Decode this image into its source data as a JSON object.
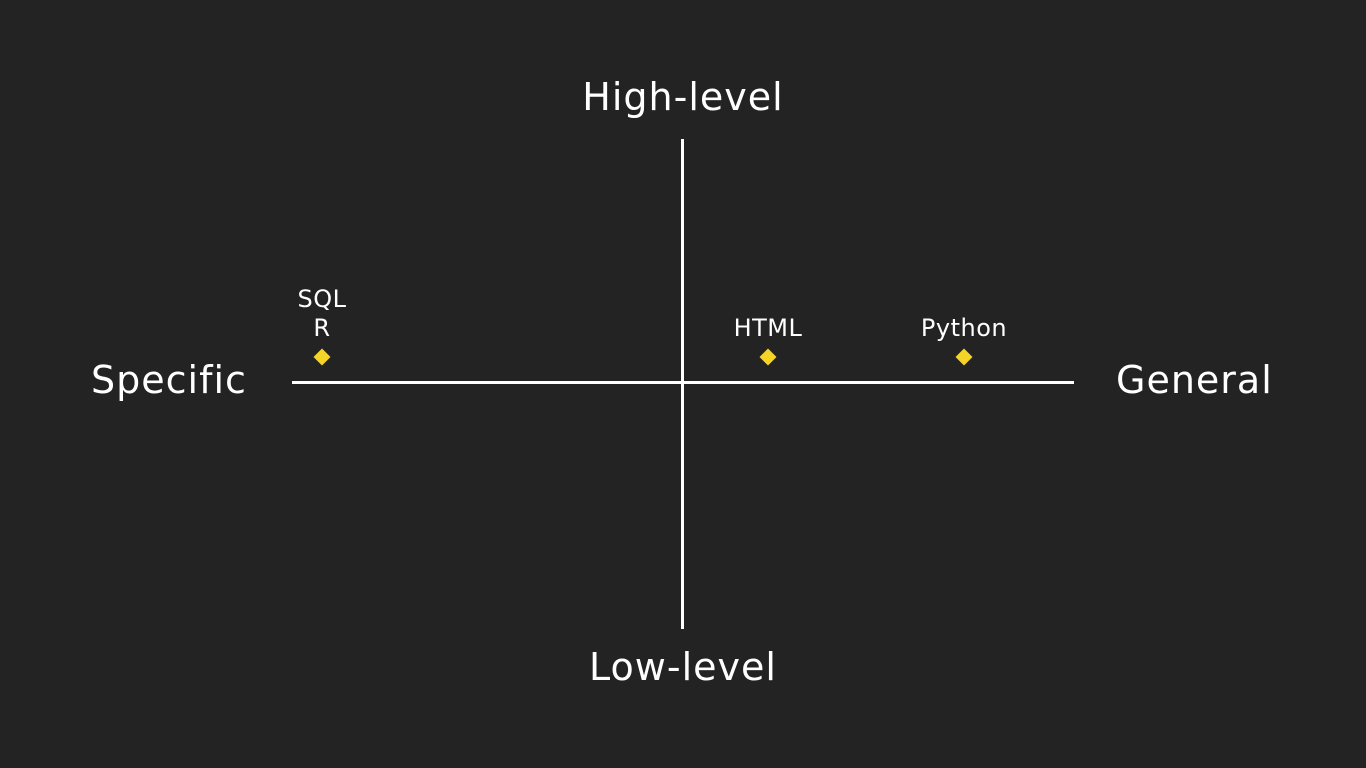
{
  "axes": {
    "top": "High-level",
    "bottom": "Low-level",
    "left": "Specific",
    "right": "General"
  },
  "points": [
    {
      "labels": [
        "SQL",
        "R"
      ]
    },
    {
      "labels": [
        "HTML"
      ]
    },
    {
      "labels": [
        "Python"
      ]
    }
  ],
  "colors": {
    "background": "#232323",
    "axis": "#ffffff",
    "marker": "#f5d327",
    "text": "#ffffff"
  }
}
